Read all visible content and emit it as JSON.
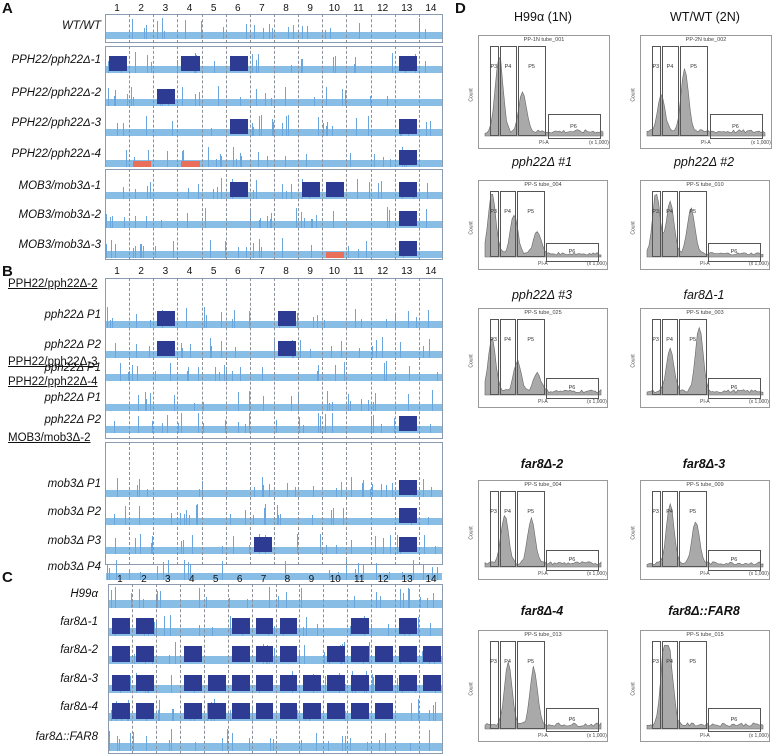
{
  "panels": {
    "A": "A",
    "B": "B",
    "C": "C",
    "D": "D"
  },
  "colors": {
    "base": "#88bde6",
    "gain": "#2e3b93",
    "loss": "#e8705a",
    "spike": "#6aa6db"
  },
  "chromosomes": [
    "1",
    "2",
    "3",
    "4",
    "5",
    "6",
    "7",
    "8",
    "9",
    "10",
    "11",
    "12",
    "13",
    "14"
  ],
  "panelA": {
    "rows": [
      {
        "label": "WT/WT",
        "group": 0,
        "blocks": []
      },
      {
        "label": "PPH22/pph22Δ-1",
        "group": 1,
        "blocks": [
          [
            1,
            "gain"
          ],
          [
            4,
            "gain"
          ],
          [
            6,
            "gain"
          ],
          [
            13,
            "gain"
          ]
        ]
      },
      {
        "label": "PPH22/pph22Δ-2",
        "group": 1,
        "blocks": [
          [
            3,
            "gain"
          ]
        ]
      },
      {
        "label": "PPH22/pph22Δ-3",
        "group": 1,
        "blocks": [
          [
            6,
            "gain"
          ],
          [
            13,
            "gain"
          ]
        ]
      },
      {
        "label": "PPH22/pph22Δ-4",
        "group": 1,
        "blocks": [
          [
            2,
            "loss"
          ],
          [
            4,
            "loss"
          ],
          [
            13,
            "gain"
          ]
        ]
      },
      {
        "label": "MOB3/mob3Δ-1",
        "group": 2,
        "blocks": [
          [
            6,
            "gain"
          ],
          [
            9,
            "gain"
          ],
          [
            10,
            "gain"
          ],
          [
            13,
            "gain"
          ]
        ]
      },
      {
        "label": "MOB3/mob3Δ-2",
        "group": 2,
        "blocks": [
          [
            13,
            "gain"
          ]
        ]
      },
      {
        "label": "MOB3/mob3Δ-3",
        "group": 2,
        "blocks": [
          [
            10,
            "loss"
          ],
          [
            13,
            "gain"
          ]
        ]
      }
    ]
  },
  "panelB": {
    "rows": [
      {
        "label": "PPH22/pph22Δ-2",
        "header": true
      },
      {
        "label": "pph22Δ P1",
        "blocks": [
          [
            3,
            "gain"
          ],
          [
            8,
            "gain"
          ]
        ]
      },
      {
        "label": "pph22Δ P2",
        "blocks": [
          [
            3,
            "gain"
          ],
          [
            8,
            "gain"
          ]
        ]
      },
      {
        "label": "PPH22/pph22Δ-3",
        "header": true
      },
      {
        "label": "pph22Δ P1",
        "blocks": []
      },
      {
        "label": "PPH22/pph22Δ-4",
        "header": true
      },
      {
        "label": "pph22Δ P1",
        "blocks": []
      },
      {
        "label": "pph22Δ P2",
        "blocks": [
          [
            13,
            "gain"
          ]
        ]
      },
      {
        "label": "MOB3/mob3Δ-2",
        "header": true
      },
      {
        "label": "mob3Δ P1",
        "blocks": [
          [
            13,
            "gain"
          ]
        ]
      },
      {
        "label": "mob3Δ P2",
        "blocks": [
          [
            13,
            "gain"
          ]
        ]
      },
      {
        "label": "mob3Δ P3",
        "blocks": [
          [
            7,
            "gain"
          ],
          [
            13,
            "gain"
          ]
        ]
      },
      {
        "label": "mob3Δ P4",
        "blocks": []
      }
    ]
  },
  "panelC": {
    "rows": [
      {
        "label": "H99α",
        "blocks": []
      },
      {
        "label": "far8Δ-1",
        "blocks": [
          [
            1,
            "gain"
          ],
          [
            2,
            "gain"
          ],
          [
            6,
            "gain"
          ],
          [
            7,
            "gain"
          ],
          [
            8,
            "gain"
          ],
          [
            11,
            "gain"
          ],
          [
            13,
            "gain"
          ]
        ]
      },
      {
        "label": "far8Δ-2",
        "blocks": [
          [
            1,
            "gain"
          ],
          [
            2,
            "gain"
          ],
          [
            4,
            "gain"
          ],
          [
            6,
            "gain"
          ],
          [
            7,
            "gain"
          ],
          [
            8,
            "gain"
          ],
          [
            10,
            "gain"
          ],
          [
            11,
            "gain"
          ],
          [
            12,
            "gain"
          ],
          [
            13,
            "gain"
          ],
          [
            14,
            "gain"
          ]
        ]
      },
      {
        "label": "far8Δ-3",
        "blocks": [
          [
            1,
            "gain"
          ],
          [
            2,
            "gain"
          ],
          [
            4,
            "gain"
          ],
          [
            5,
            "gain"
          ],
          [
            6,
            "gain"
          ],
          [
            7,
            "gain"
          ],
          [
            8,
            "gain"
          ],
          [
            9,
            "gain"
          ],
          [
            10,
            "gain"
          ],
          [
            11,
            "gain"
          ],
          [
            12,
            "gain"
          ],
          [
            13,
            "gain"
          ],
          [
            14,
            "gain"
          ]
        ]
      },
      {
        "label": "far8Δ-4",
        "blocks": [
          [
            1,
            "gain"
          ],
          [
            2,
            "gain"
          ],
          [
            4,
            "gain"
          ],
          [
            5,
            "gain"
          ],
          [
            6,
            "gain"
          ],
          [
            7,
            "gain"
          ],
          [
            8,
            "gain"
          ],
          [
            9,
            "gain"
          ],
          [
            10,
            "gain"
          ],
          [
            11,
            "gain"
          ],
          [
            12,
            "gain"
          ]
        ]
      },
      {
        "label": "far8Δ::FAR8",
        "blocks": []
      }
    ]
  },
  "panelD": {
    "plots": [
      {
        "title": "H99α (1N)",
        "style": "plain",
        "file": "PP-1N tube_001"
      },
      {
        "title": "WT/WT (2N)",
        "style": "plain",
        "file": "PP-2N tube_002"
      },
      {
        "title": "pph22Δ #1",
        "style": "it",
        "file": "PP-S tube_004"
      },
      {
        "title": "pph22Δ #2",
        "style": "it",
        "file": "PP-S tube_010"
      },
      {
        "title": "pph22Δ #3",
        "style": "it",
        "file": "PP-S tube_025"
      },
      {
        "title": "far8Δ-1",
        "style": "it",
        "file": "PP-S tube_003"
      },
      {
        "title": "far8Δ-2",
        "style": "bdit",
        "file": "PP-S tube_004"
      },
      {
        "title": "far8Δ-3",
        "style": "bdit",
        "file": "PP-S tube_009"
      },
      {
        "title": "far8Δ-4",
        "style": "bdit",
        "file": "PP-S tube_013"
      },
      {
        "title": "far8Δ::FAR8",
        "style": "bdit",
        "file": "PP-S tube_015"
      }
    ],
    "gates": [
      "P3",
      "P4",
      "P5",
      "P6"
    ],
    "xlabel": "PI-A",
    "ylabel": "Count",
    "xticks": [
      "50",
      "100",
      "150",
      "200",
      "250"
    ],
    "xunit": "(x 1,000)"
  }
}
